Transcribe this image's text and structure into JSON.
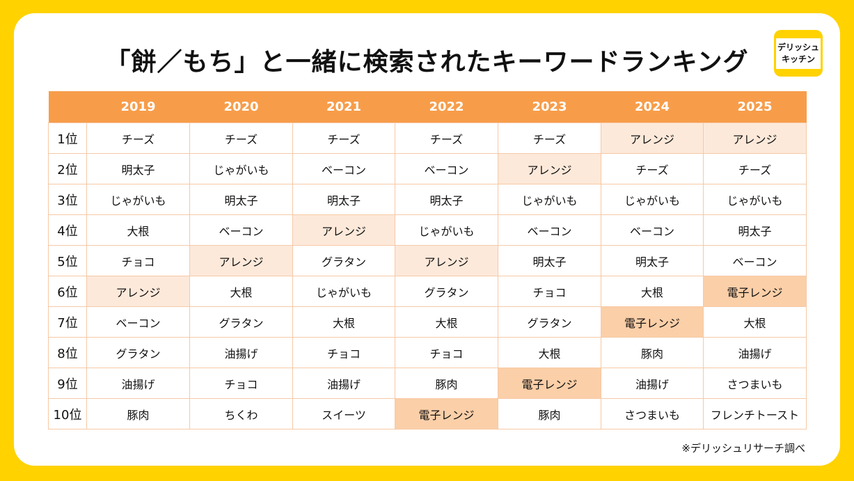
{
  "title": "「餅／もち」と一緒に検索されたキーワードランキング",
  "logo": {
    "line1": "デリッシュ",
    "line2": "キッチン"
  },
  "source_note": "※デリッシュリサーチ調べ",
  "colors": {
    "background": "#FFD200",
    "header": "#F79D4A",
    "highlight_arrange": "#FDE9DA",
    "highlight_denshi_range": "#FBCFA8"
  },
  "chart_data": {
    "type": "table",
    "columns": [
      "",
      "2019",
      "2020",
      "2021",
      "2022",
      "2023",
      "2024",
      "2025"
    ],
    "rows": [
      {
        "rank": "1位",
        "cells": [
          "チーズ",
          "チーズ",
          "チーズ",
          "チーズ",
          "チーズ",
          "アレンジ",
          "アレンジ"
        ]
      },
      {
        "rank": "2位",
        "cells": [
          "明太子",
          "じゃがいも",
          "ベーコン",
          "ベーコン",
          "アレンジ",
          "チーズ",
          "チーズ"
        ]
      },
      {
        "rank": "3位",
        "cells": [
          "じゃがいも",
          "明太子",
          "明太子",
          "明太子",
          "じゃがいも",
          "じゃがいも",
          "じゃがいも"
        ]
      },
      {
        "rank": "4位",
        "cells": [
          "大根",
          "ベーコン",
          "アレンジ",
          "じゃがいも",
          "ベーコン",
          "ベーコン",
          "明太子"
        ]
      },
      {
        "rank": "5位",
        "cells": [
          "チョコ",
          "アレンジ",
          "グラタン",
          "アレンジ",
          "明太子",
          "明太子",
          "ベーコン"
        ]
      },
      {
        "rank": "6位",
        "cells": [
          "アレンジ",
          "大根",
          "じゃがいも",
          "グラタン",
          "チョコ",
          "大根",
          "電子レンジ"
        ]
      },
      {
        "rank": "7位",
        "cells": [
          "ベーコン",
          "グラタン",
          "大根",
          "大根",
          "グラタン",
          "電子レンジ",
          "大根"
        ]
      },
      {
        "rank": "8位",
        "cells": [
          "グラタン",
          "油揚げ",
          "チョコ",
          "チョコ",
          "大根",
          "豚肉",
          "油揚げ"
        ]
      },
      {
        "rank": "9位",
        "cells": [
          "油揚げ",
          "チョコ",
          "油揚げ",
          "豚肉",
          "電子レンジ",
          "油揚げ",
          "さつまいも"
        ]
      },
      {
        "rank": "10位",
        "cells": [
          "豚肉",
          "ちくわ",
          "スイーツ",
          "電子レンジ",
          "豚肉",
          "さつまいも",
          "フレンチトースト"
        ]
      }
    ],
    "highlighted_terms": {
      "アレンジ": "light",
      "電子レンジ": "dark"
    }
  }
}
